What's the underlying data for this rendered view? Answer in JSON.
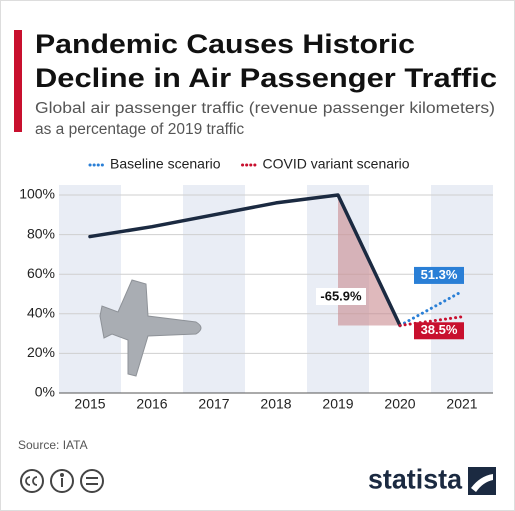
{
  "chart_data": {
    "type": "line",
    "title": [
      "Pandemic Causes Historic",
      "Decline in Air Passenger Traffic"
    ],
    "subtitle": [
      "Global air passenger traffic (revenue passenger kilometers)",
      "as a percentage of 2019 traffic"
    ],
    "categories": [
      "2015",
      "2016",
      "2017",
      "2018",
      "2019",
      "2020",
      "2021"
    ],
    "series": [
      {
        "color": "#1b2a41",
        "values": [
          79,
          84,
          90,
          96,
          100,
          34.1,
          null
        ]
      },
      {
        "name": "Baseline scenario",
        "color": "#2a7fd6",
        "values": [
          null,
          null,
          null,
          null,
          null,
          34.1,
          51.3
        ],
        "value_labels": [
          null,
          null,
          null,
          null,
          null,
          null,
          "51.3%"
        ]
      },
      {
        "name": "COVID variant scenario",
        "color": "#c8102e",
        "values": [
          null,
          null,
          null,
          null,
          null,
          34.1,
          38.5
        ],
        "value_labels": [
          null,
          null,
          null,
          null,
          null,
          null,
          "38.5%"
        ]
      }
    ],
    "annotations": [
      {
        "text": "-65.9%"
      }
    ],
    "ylim": [
      0,
      100
    ],
    "yticks": [
      {
        "value": 0,
        "label": "0%"
      },
      {
        "value": 20,
        "label": "20%"
      },
      {
        "value": 40,
        "label": "40%"
      },
      {
        "value": 60,
        "label": "60%"
      },
      {
        "value": 80,
        "label": "80%"
      },
      {
        "value": 100,
        "label": "100%"
      }
    ],
    "grid": true,
    "legend": "top",
    "source": "Source: IATA",
    "brand": "statista"
  }
}
